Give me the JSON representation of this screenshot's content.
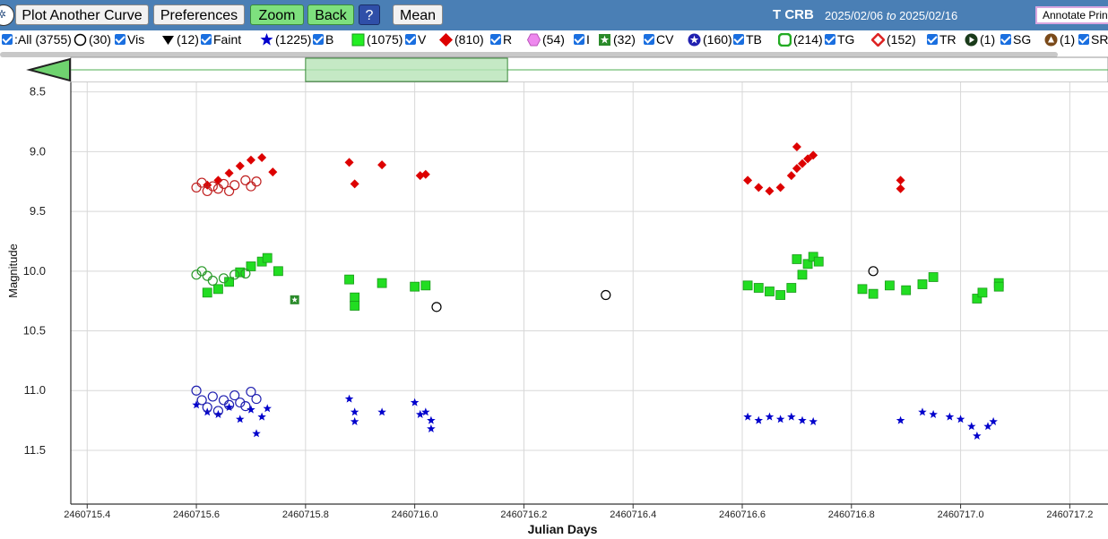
{
  "toolbar": {
    "plot_another_curve": "Plot Another Curve",
    "preferences": "Preferences",
    "zoom": "Zoom",
    "back": "Back",
    "help": "?",
    "mean": "Mean",
    "star_name": "T CRB",
    "date_from": "2025/02/06",
    "date_to_word": "to",
    "date_to": "2025/02/16",
    "annotate": "Annotate Print"
  },
  "legend": [
    {
      "icon": "checkbox-icon",
      "text": ":All (3755)"
    },
    {
      "icon": "open-circle-icon",
      "text": "(30)"
    },
    {
      "icon": "checkbox-icon",
      "text": "Vis"
    },
    {
      "icon": "down-triangle-icon",
      "text": "(12)"
    },
    {
      "icon": "checkbox-icon",
      "text": "Faint"
    },
    {
      "icon": "blue-star-icon",
      "text": "(1225)"
    },
    {
      "icon": "checkbox-icon",
      "text": "B"
    },
    {
      "icon": "green-square-icon",
      "text": "(1075)"
    },
    {
      "icon": "checkbox-icon",
      "text": "V"
    },
    {
      "icon": "red-diamond-icon",
      "text": "(810)"
    },
    {
      "icon": "checkbox-icon",
      "text": "R"
    },
    {
      "icon": "pink-hexagon-icon",
      "text": "(54)"
    },
    {
      "icon": "checkbox-icon",
      "text": "I"
    },
    {
      "icon": "green-star-square-icon",
      "text": "(32)"
    },
    {
      "icon": "checkbox-icon",
      "text": "CV"
    },
    {
      "icon": "blue-star-circle-icon",
      "text": "(160)"
    },
    {
      "icon": "checkbox-icon",
      "text": "TB"
    },
    {
      "icon": "green-ring-icon",
      "text": "(214)"
    },
    {
      "icon": "checkbox-icon",
      "text": "TG"
    },
    {
      "icon": "red-ring-icon",
      "text": "(152)"
    },
    {
      "icon": "checkbox-icon",
      "text": "TR"
    },
    {
      "icon": "play-circle-icon",
      "text": "(1)"
    },
    {
      "icon": "checkbox-icon",
      "text": "SG"
    },
    {
      "icon": "up-triangle-circle-icon",
      "text": "(1)"
    },
    {
      "icon": "checkbox-icon",
      "text": "SR"
    }
  ],
  "colors": {
    "toolbar_bg": "#4a7fb5",
    "B": "#0000cc",
    "V": "#22dd22",
    "R": "#dd0000",
    "TB": "#2020b0",
    "TG": "#2a9a2a",
    "TR": "#c02020",
    "Vis": "#000000",
    "CV": "#2a8a2a"
  },
  "chart_data": {
    "type": "scatter",
    "title": "",
    "xlabel": "Julian Days",
    "ylabel": "Magnitude",
    "xlim": [
      2460715.37,
      2460717.27
    ],
    "ylim": [
      11.95,
      8.42
    ],
    "y_inverted": true,
    "grid": true,
    "x_ticks": [
      "2460715.4",
      "2460715.6",
      "2460715.8",
      "2460716.0",
      "2460716.2",
      "2460716.4",
      "2460716.6",
      "2460716.8",
      "2460717.0",
      "2460717.2"
    ],
    "y_ticks": [
      "8.5",
      "9.0",
      "9.5",
      "10.0",
      "10.5",
      "11.0",
      "11.5"
    ],
    "overview_window": [
      2460715.8,
      2460716.17
    ],
    "series": [
      {
        "name": "R",
        "marker": "diamond",
        "color": "#dd0000",
        "points": [
          [
            2460715.62,
            9.28
          ],
          [
            2460715.64,
            9.24
          ],
          [
            2460715.66,
            9.18
          ],
          [
            2460715.68,
            9.12
          ],
          [
            2460715.7,
            9.07
          ],
          [
            2460715.72,
            9.05
          ],
          [
            2460715.74,
            9.17
          ],
          [
            2460715.88,
            9.09
          ],
          [
            2460715.89,
            9.27
          ],
          [
            2460715.94,
            9.11
          ],
          [
            2460716.01,
            9.2
          ],
          [
            2460716.02,
            9.19
          ],
          [
            2460716.61,
            9.24
          ],
          [
            2460716.63,
            9.3
          ],
          [
            2460716.65,
            9.33
          ],
          [
            2460716.67,
            9.3
          ],
          [
            2460716.69,
            9.2
          ],
          [
            2460716.7,
            9.14
          ],
          [
            2460716.71,
            9.1
          ],
          [
            2460716.72,
            9.06
          ],
          [
            2460716.73,
            9.03
          ],
          [
            2460716.7,
            8.96
          ],
          [
            2460716.89,
            9.24
          ],
          [
            2460716.89,
            9.31
          ]
        ]
      },
      {
        "name": "TR",
        "marker": "open-circle",
        "color": "#c02020",
        "points": [
          [
            2460715.6,
            9.3
          ],
          [
            2460715.61,
            9.26
          ],
          [
            2460715.62,
            9.33
          ],
          [
            2460715.63,
            9.29
          ],
          [
            2460715.64,
            9.31
          ],
          [
            2460715.65,
            9.27
          ],
          [
            2460715.66,
            9.33
          ],
          [
            2460715.67,
            9.28
          ],
          [
            2460715.69,
            9.24
          ],
          [
            2460715.7,
            9.29
          ],
          [
            2460715.71,
            9.25
          ]
        ]
      },
      {
        "name": "V",
        "marker": "square",
        "color": "#22dd22",
        "points": [
          [
            2460715.62,
            10.18
          ],
          [
            2460715.64,
            10.15
          ],
          [
            2460715.66,
            10.09
          ],
          [
            2460715.68,
            10.01
          ],
          [
            2460715.7,
            9.96
          ],
          [
            2460715.72,
            9.92
          ],
          [
            2460715.73,
            9.89
          ],
          [
            2460715.75,
            10.0
          ],
          [
            2460715.88,
            10.07
          ],
          [
            2460715.89,
            10.22
          ],
          [
            2460715.89,
            10.29
          ],
          [
            2460715.94,
            10.1
          ],
          [
            2460716.0,
            10.13
          ],
          [
            2460716.02,
            10.12
          ],
          [
            2460716.61,
            10.12
          ],
          [
            2460716.63,
            10.14
          ],
          [
            2460716.65,
            10.17
          ],
          [
            2460716.67,
            10.2
          ],
          [
            2460716.69,
            10.14
          ],
          [
            2460716.71,
            10.03
          ],
          [
            2460716.72,
            9.94
          ],
          [
            2460716.73,
            9.88
          ],
          [
            2460716.74,
            9.92
          ],
          [
            2460716.7,
            9.9
          ],
          [
            2460716.82,
            10.15
          ],
          [
            2460716.84,
            10.19
          ],
          [
            2460716.87,
            10.12
          ],
          [
            2460716.9,
            10.16
          ],
          [
            2460716.93,
            10.11
          ],
          [
            2460716.95,
            10.05
          ],
          [
            2460717.03,
            10.23
          ],
          [
            2460717.04,
            10.18
          ],
          [
            2460717.07,
            10.1
          ],
          [
            2460717.07,
            10.13
          ]
        ]
      },
      {
        "name": "TG",
        "marker": "open-circle",
        "color": "#2a9a2a",
        "points": [
          [
            2460715.6,
            10.03
          ],
          [
            2460715.61,
            10.0
          ],
          [
            2460715.62,
            10.04
          ],
          [
            2460715.63,
            10.08
          ],
          [
            2460715.65,
            10.06
          ],
          [
            2460715.67,
            10.03
          ],
          [
            2460715.69,
            10.02
          ]
        ]
      },
      {
        "name": "CV",
        "marker": "star-square",
        "color": "#2a8a2a",
        "points": [
          [
            2460715.78,
            10.24
          ]
        ]
      },
      {
        "name": "Vis",
        "marker": "open-circle",
        "color": "#000000",
        "points": [
          [
            2460716.04,
            10.3
          ],
          [
            2460716.35,
            10.2
          ],
          [
            2460716.84,
            10.0
          ]
        ]
      },
      {
        "name": "B",
        "marker": "star",
        "color": "#0000cc",
        "points": [
          [
            2460715.6,
            11.12
          ],
          [
            2460715.62,
            11.18
          ],
          [
            2460715.64,
            11.2
          ],
          [
            2460715.66,
            11.14
          ],
          [
            2460715.68,
            11.24
          ],
          [
            2460715.7,
            11.16
          ],
          [
            2460715.71,
            11.36
          ],
          [
            2460715.72,
            11.22
          ],
          [
            2460715.73,
            11.15
          ],
          [
            2460715.88,
            11.07
          ],
          [
            2460715.89,
            11.18
          ],
          [
            2460715.89,
            11.26
          ],
          [
            2460715.94,
            11.18
          ],
          [
            2460716.0,
            11.1
          ],
          [
            2460716.01,
            11.2
          ],
          [
            2460716.02,
            11.18
          ],
          [
            2460716.03,
            11.25
          ],
          [
            2460716.03,
            11.32
          ],
          [
            2460716.61,
            11.22
          ],
          [
            2460716.63,
            11.25
          ],
          [
            2460716.65,
            11.22
          ],
          [
            2460716.67,
            11.24
          ],
          [
            2460716.69,
            11.22
          ],
          [
            2460716.71,
            11.25
          ],
          [
            2460716.73,
            11.26
          ],
          [
            2460716.89,
            11.25
          ],
          [
            2460716.93,
            11.18
          ],
          [
            2460716.95,
            11.2
          ],
          [
            2460716.98,
            11.22
          ],
          [
            2460717.0,
            11.24
          ],
          [
            2460717.02,
            11.3
          ],
          [
            2460717.03,
            11.38
          ],
          [
            2460717.05,
            11.3
          ],
          [
            2460717.06,
            11.26
          ]
        ]
      },
      {
        "name": "TB",
        "marker": "open-circle",
        "color": "#2020b0",
        "points": [
          [
            2460715.6,
            11.0
          ],
          [
            2460715.61,
            11.08
          ],
          [
            2460715.62,
            11.14
          ],
          [
            2460715.63,
            11.05
          ],
          [
            2460715.64,
            11.17
          ],
          [
            2460715.65,
            11.08
          ],
          [
            2460715.66,
            11.12
          ],
          [
            2460715.67,
            11.04
          ],
          [
            2460715.68,
            11.1
          ],
          [
            2460715.69,
            11.13
          ],
          [
            2460715.7,
            11.01
          ],
          [
            2460715.71,
            11.07
          ]
        ]
      }
    ]
  }
}
